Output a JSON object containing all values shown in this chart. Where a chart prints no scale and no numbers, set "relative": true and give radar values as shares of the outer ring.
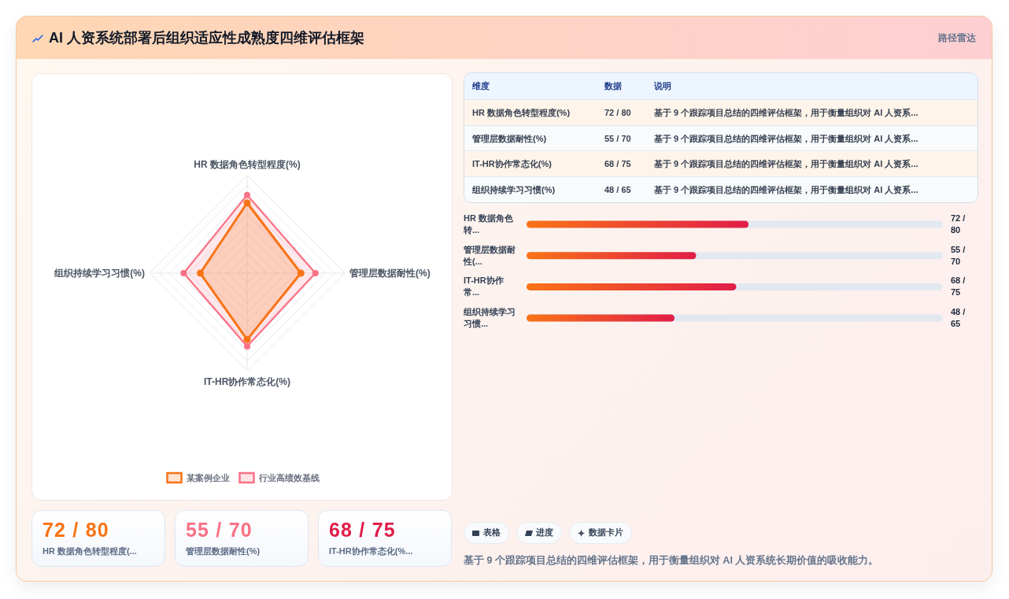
{
  "chart_data": [
    {
      "type": "other",
      "title": "AI 人资系统部署后组织适应性成熟度四维评估框架",
      "subtitle": "路径雷达"
    },
    {
      "type": "radar",
      "categories": [
        "HR 数据角色转型程度(%)",
        "管理层数据耐性(%)",
        "IT-HR协作常态化(%)",
        "组织持续学习习惯(%)"
      ],
      "relative": true,
      "series": [
        {
          "name": "某案例企业",
          "color": "#f97316",
          "values": [
            0.72,
            0.55,
            0.68,
            0.48
          ]
        },
        {
          "name": "行业高绩效基线",
          "color": "#fb7185",
          "values": [
            0.8,
            0.7,
            0.75,
            0.65
          ]
        }
      ],
      "grid": true,
      "legend": "bottom",
      "marker": "circle"
    },
    {
      "type": "other",
      "annotations": [
        "维度",
        "数据",
        "说明",
        "HR 数据角色转型程度(%)",
        "72 / 80",
        "基于 9 个跟踪项目总结的四维评估框架，用于衡量组织对 AI 人资系...",
        "管理层数据耐性(%)",
        "55 / 70",
        "基于 9 个跟踪项目总结的四维评估框架，用于衡量组织对 AI 人资系...",
        "IT-HR协作常态化(%)",
        "68 / 75",
        "基于 9 个跟踪项目总结的四维评估框架，用于衡量组织对 AI 人资系...",
        "组织持续学习习惯(%)",
        "48 / 65",
        "基于 9 个跟踪项目总结的四维评估框架，用于衡量组织对 AI 人资系..."
      ]
    },
    {
      "type": "bar",
      "orientation": "horizontal",
      "categories": [
        "HR 数据角色转...",
        "管理层数据耐性(...",
        "IT-HR协作常...",
        "组织持续学习习惯..."
      ],
      "values": [
        72,
        55,
        68,
        48
      ],
      "color": "#e11d48",
      "value_labels": [
        "72 / 80",
        "55 / 70",
        "68 / 75",
        "48 / 65"
      ],
      "xlim": [
        0,
        135
      ],
      "tick_labels": "y"
    },
    {
      "type": "other",
      "annotations": [
        "72 / 80",
        "HR 数据角色转型程度(...",
        "55 / 70",
        "管理层数据耐性(%)",
        "68 / 75",
        "IT-HR协作常态化(%..."
      ],
      "colors": [
        "#f97316",
        "#fb7185",
        "#e11d48"
      ]
    },
    {
      "type": "other",
      "annotations": [
        "表格",
        "进度",
        "数据卡片",
        "基于 9 个跟踪项目总结的四维评估框架，用于衡量组织对 AI 人资系统长期价值的吸收能力。"
      ]
    }
  ]
}
